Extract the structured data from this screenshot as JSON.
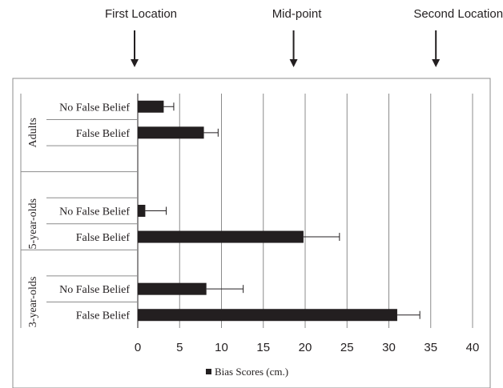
{
  "markers": [
    {
      "label": "First Location",
      "x": 0
    },
    {
      "label": "Mid-point",
      "x": 19
    },
    {
      "label": "Second Location",
      "x": 36
    }
  ],
  "chart_data": {
    "type": "bar",
    "orientation": "horizontal",
    "groups": [
      {
        "name": "Adults",
        "rows": [
          {
            "label": "No False Belief",
            "value": 3.1,
            "error": 1.2
          },
          {
            "label": "False Belief",
            "value": 7.9,
            "error": 1.7
          }
        ]
      },
      {
        "name": "5-year-olds",
        "rows": [
          {
            "label": "No False Belief",
            "value": 0.9,
            "error": 2.5
          },
          {
            "label": "False Belief",
            "value": 19.8,
            "error": 4.3
          }
        ]
      },
      {
        "name": "3-year-olds",
        "rows": [
          {
            "label": "No False Belief",
            "value": 8.2,
            "error": 4.4
          },
          {
            "label": "False Belief",
            "value": 31.0,
            "error": 2.7
          }
        ]
      }
    ],
    "xlim": [
      0,
      40
    ],
    "xticks": [
      0,
      5,
      10,
      15,
      20,
      25,
      30,
      35,
      40
    ],
    "grid": true,
    "bar_color": "#231f20",
    "legend": {
      "label": "Bias Scores (cm.)",
      "placement": "bottom"
    }
  }
}
